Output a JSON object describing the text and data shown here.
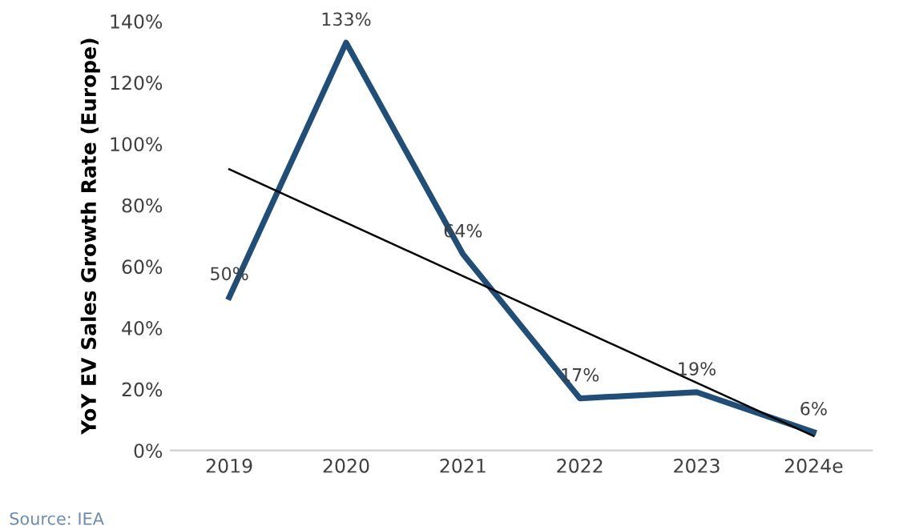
{
  "chart_data": {
    "type": "line",
    "ylabel": "YoY EV Sales Growth Rate (Europe)",
    "categories": [
      "2019",
      "2020",
      "2021",
      "2022",
      "2023",
      "2024e"
    ],
    "series": [
      {
        "color": "#1f4e79",
        "values": [
          50,
          133,
          64,
          17,
          19,
          6
        ],
        "value_labels": [
          "50%",
          "133%",
          "64%",
          "17%",
          "19%",
          "6%"
        ]
      },
      {
        "color": "#000000",
        "values": [
          91.7,
          74.3,
          56.9,
          39.5,
          22.1,
          4.7
        ]
      }
    ],
    "ylim": [
      0,
      140
    ],
    "yticks": [
      {
        "value": 0,
        "label": "0%"
      },
      {
        "value": 20,
        "label": "20%"
      },
      {
        "value": 40,
        "label": "40%"
      },
      {
        "value": 60,
        "label": "60%"
      },
      {
        "value": 80,
        "label": "80%"
      },
      {
        "value": 100,
        "label": "100%"
      },
      {
        "value": 120,
        "label": "120%"
      },
      {
        "value": 140,
        "label": "140%"
      }
    ],
    "grid": false,
    "legend": false,
    "marker": "none",
    "line_style": "solid",
    "annotations": [
      "Source: IEA"
    ]
  }
}
